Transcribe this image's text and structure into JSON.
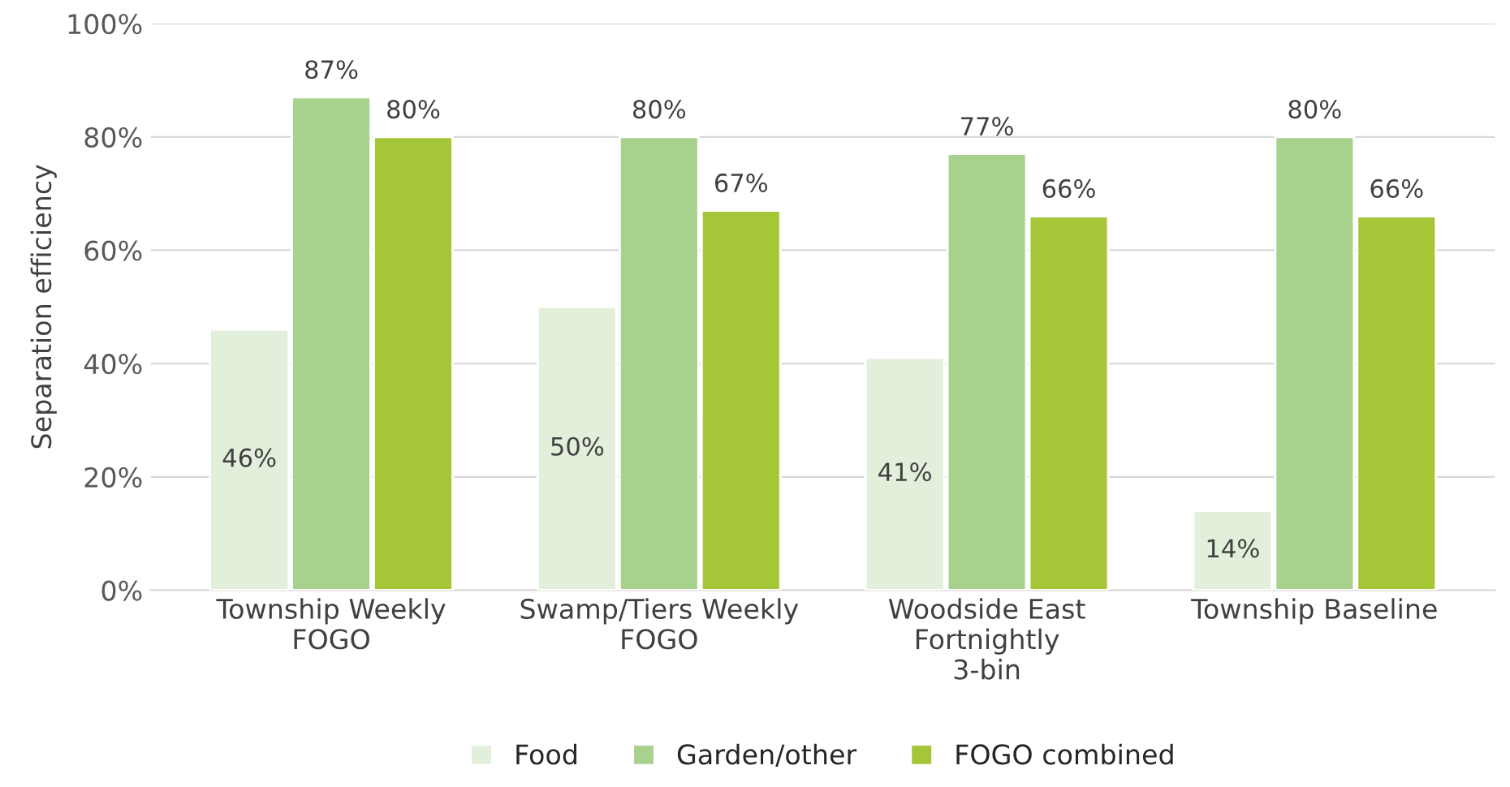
{
  "chart_data": {
    "type": "bar",
    "ylabel": "Separation efficiency",
    "categories": [
      "Township Weekly\nFOGO",
      "Swamp/Tiers Weekly\nFOGO",
      "Woodside East\nFortnightly\n3-bin",
      "Township Baseline"
    ],
    "series": [
      {
        "name": "Food",
        "color": "#e2efda",
        "values": [
          46,
          50,
          41,
          14
        ],
        "value_labels": [
          "46%",
          "50%",
          "41%",
          "14%"
        ]
      },
      {
        "name": "Garden/other",
        "color": "#a9d18e",
        "values": [
          87,
          80,
          77,
          80
        ],
        "value_labels": [
          "87%",
          "80%",
          "77%",
          "80%"
        ]
      },
      {
        "name": "FOGO combined",
        "color": "#a5c636",
        "values": [
          80,
          67,
          66,
          66
        ],
        "value_labels": [
          "80%",
          "67%",
          "66%",
          "66%"
        ]
      }
    ],
    "ylim": [
      0,
      100
    ],
    "yticks": [
      {
        "value": 0,
        "label": "0%"
      },
      {
        "value": 20,
        "label": "20%"
      },
      {
        "value": 40,
        "label": "40%"
      },
      {
        "value": 60,
        "label": "60%"
      },
      {
        "value": 80,
        "label": "80%"
      },
      {
        "value": 100,
        "label": "100%"
      }
    ],
    "grid": "y",
    "legend": "bottom"
  }
}
